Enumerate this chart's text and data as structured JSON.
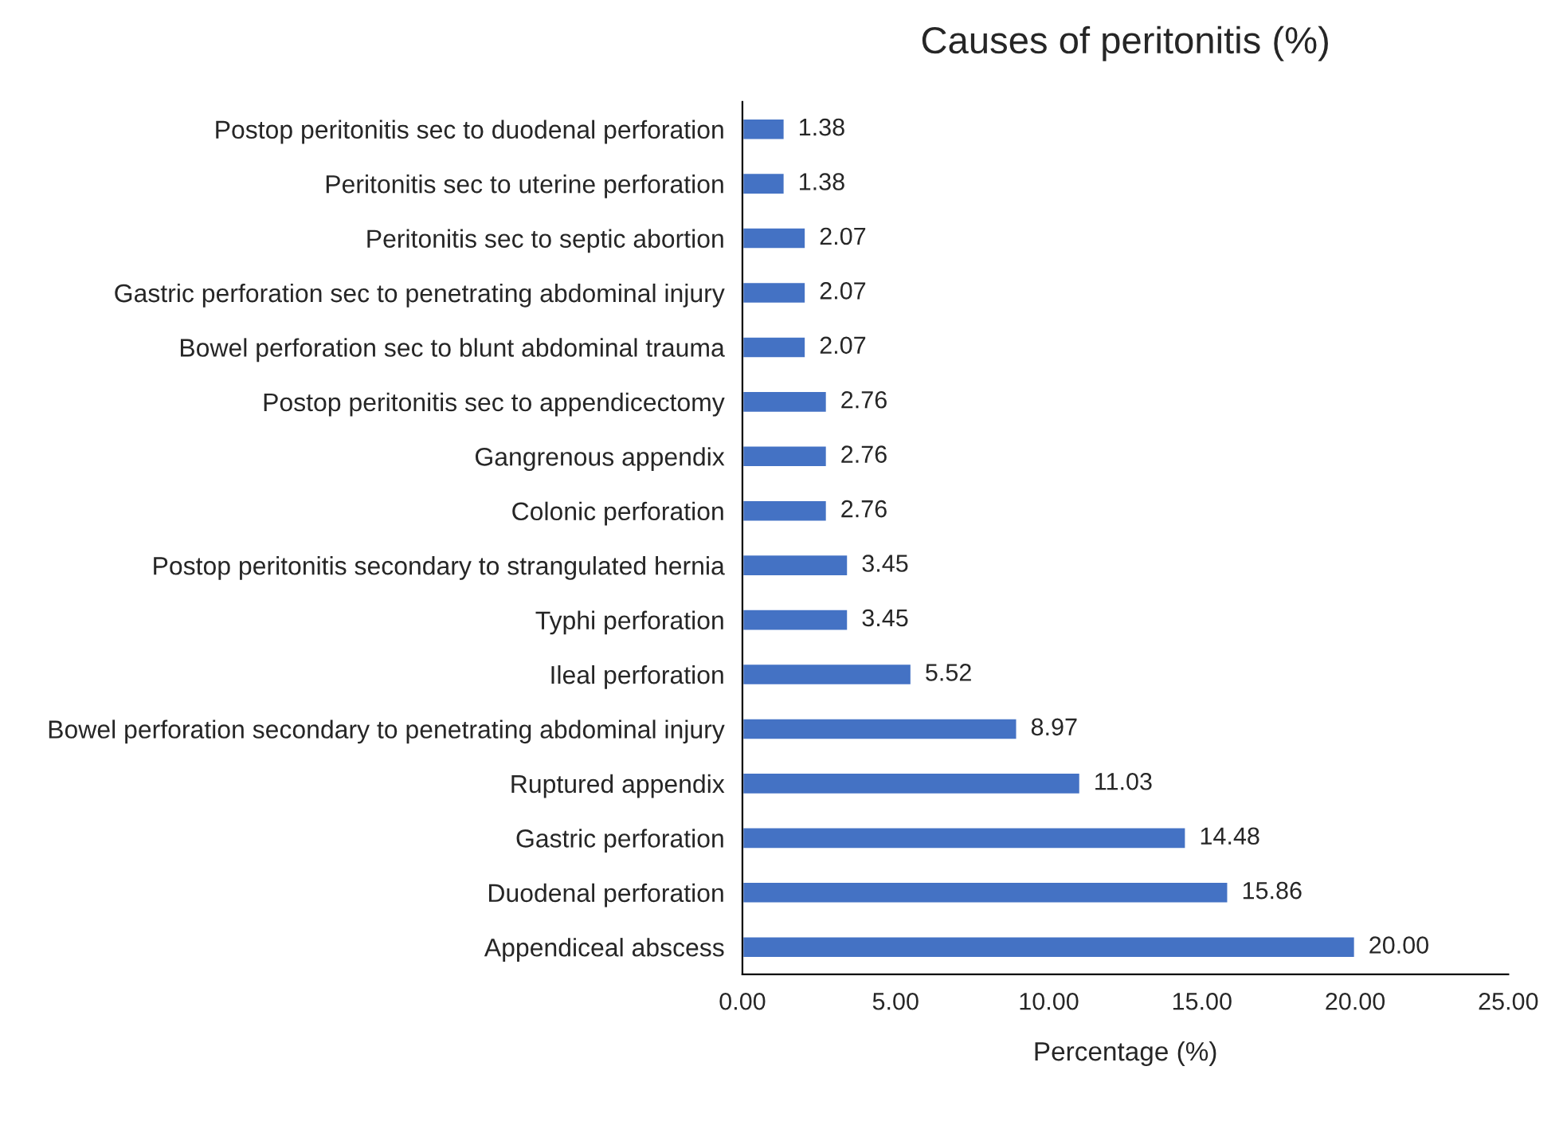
{
  "chart_data": {
    "type": "bar",
    "orientation": "horizontal",
    "title": "Causes of peritonitis (%)",
    "xlabel": "Percentage (%)",
    "categories": [
      "Postop peritonitis sec to duodenal perforation",
      "Peritonitis sec to uterine perforation",
      "Peritonitis sec to septic abortion",
      "Gastric perforation sec to penetrating abdominal injury",
      "Bowel perforation sec to blunt abdominal trauma",
      "Postop peritonitis sec to appendicectomy",
      "Gangrenous appendix",
      "Colonic perforation",
      "Postop peritonitis secondary to strangulated hernia",
      "Typhi perforation",
      "Ileal perforation",
      "Bowel perforation secondary to penetrating abdominal injury",
      "Ruptured appendix",
      "Gastric perforation",
      "Duodenal perforation",
      "Appendiceal abscess"
    ],
    "values": [
      1.38,
      1.38,
      2.07,
      2.07,
      2.07,
      2.76,
      2.76,
      2.76,
      3.45,
      3.45,
      5.52,
      8.97,
      11.03,
      14.48,
      15.86,
      20.0
    ],
    "value_labels": [
      "1.38",
      "1.38",
      "2.07",
      "2.07",
      "2.07",
      "2.76",
      "2.76",
      "2.76",
      "3.45",
      "3.45",
      "5.52",
      "8.97",
      "11.03",
      "14.48",
      "15.86",
      "20.00"
    ],
    "color": "#4472c4",
    "xlim": [
      0,
      25
    ],
    "xticks": [
      {
        "value": 0,
        "label": "0.00"
      },
      {
        "value": 5,
        "label": "5.00"
      },
      {
        "value": 10,
        "label": "10.00"
      },
      {
        "value": 15,
        "label": "15.00"
      },
      {
        "value": 20,
        "label": "20.00"
      },
      {
        "value": 25,
        "label": "25.00"
      }
    ],
    "grid": false
  }
}
